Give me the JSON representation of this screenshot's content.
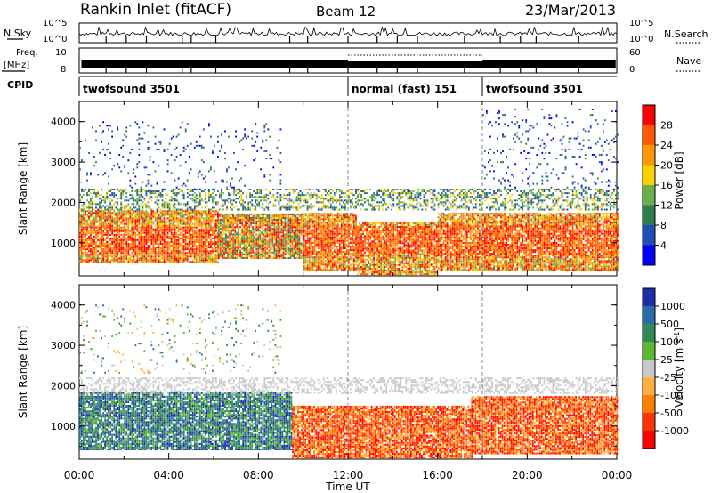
{
  "header": {
    "title": "Rankin Inlet (fitACF)",
    "beam": "Beam 12",
    "date": "23/Mar/2013"
  },
  "status_panels": {
    "nsky_label": "N.Sky",
    "nsearch_label": "N.Search",
    "nsky_ticks": [
      "10^5",
      "10^0"
    ],
    "freq_label_1": "Freq.",
    "freq_label_2": "[MHz]",
    "freq_ticks": [
      "10",
      "8"
    ],
    "nave_ticks": [
      "60",
      "0"
    ],
    "nave_label": "Nave",
    "cpid_label": "CPID",
    "cpid_segments": [
      {
        "start_h": 0,
        "end_h": 12,
        "label": "twofsound 3501"
      },
      {
        "start_h": 12,
        "end_h": 18,
        "label": "normal (fast) 151"
      },
      {
        "start_h": 18,
        "end_h": 24,
        "label": "twofsound 3501"
      }
    ]
  },
  "colors": {
    "power": [
      "#0000ff",
      "#1f4fb4",
      "#2f7c4f",
      "#69b04a",
      "#ffd000",
      "#ff9800",
      "#ff5a00",
      "#ff0000"
    ],
    "velocity": [
      "#ff0000",
      "#ff3300",
      "#ff7f00",
      "#ffb040",
      "#c8c8c8",
      "#5bb82f",
      "#2f8a56",
      "#2a6aa8",
      "#1a2fa8"
    ]
  },
  "chart_data": [
    {
      "type": "heatmap",
      "name": "power-panel",
      "ylabel": "Slant Range [km]",
      "xlabel": "Time UT",
      "xlim": [
        0,
        24
      ],
      "ylim": [
        180,
        4500
      ],
      "xticks": [
        "00:00",
        "04:00",
        "08:00",
        "12:00",
        "16:00",
        "20:00",
        "00:00"
      ],
      "yticks": [
        1000,
        2000,
        3000,
        4000
      ],
      "colorbar": {
        "label": "Power [dB]",
        "ticks": [
          "28",
          "24",
          "20",
          "16",
          "12",
          "8",
          "4"
        ]
      },
      "bands": [
        {
          "start_h": 0.0,
          "end_h": 6.2,
          "min_km": 500,
          "max_km": 1800,
          "level": "high"
        },
        {
          "start_h": 6.2,
          "end_h": 10.0,
          "min_km": 600,
          "max_km": 1700,
          "level": "mid"
        },
        {
          "start_h": 10.0,
          "end_h": 12.4,
          "min_km": 300,
          "max_km": 1700,
          "level": "high"
        },
        {
          "start_h": 12.4,
          "end_h": 16.0,
          "min_km": 200,
          "max_km": 1500,
          "level": "high"
        },
        {
          "start_h": 16.0,
          "end_h": 24.0,
          "min_km": 300,
          "max_km": 1700,
          "level": "high"
        },
        {
          "start_h": 0.0,
          "end_h": 24.0,
          "min_km": 1800,
          "max_km": 2300,
          "level": "low"
        },
        {
          "start_h": 0.0,
          "end_h": 9.0,
          "min_km": 2300,
          "max_km": 4000,
          "level": "sparse"
        },
        {
          "start_h": 18.0,
          "end_h": 24.0,
          "min_km": 2300,
          "max_km": 4300,
          "level": "sparse"
        }
      ]
    },
    {
      "type": "heatmap",
      "name": "velocity-panel",
      "ylabel": "Slant Range [km]",
      "xlabel": "Time UT",
      "xlim": [
        0,
        24
      ],
      "ylim": [
        180,
        4500
      ],
      "xticks": [
        "00:00",
        "04:00",
        "08:00",
        "12:00",
        "16:00",
        "20:00",
        "00:00"
      ],
      "yticks": [
        1000,
        2000,
        3000,
        4000
      ],
      "colorbar": {
        "label": "Velocity [m s^-1]",
        "ticks": [
          "1000",
          "500",
          "100",
          "25",
          "-25",
          "-100",
          "-500",
          "-1000"
        ]
      },
      "bands": [
        {
          "start_h": 0.0,
          "end_h": 9.5,
          "min_km": 400,
          "max_km": 1800,
          "sign": "positive"
        },
        {
          "start_h": 9.5,
          "end_h": 17.5,
          "min_km": 200,
          "max_km": 1500,
          "sign": "negative"
        },
        {
          "start_h": 17.5,
          "end_h": 24.0,
          "min_km": 300,
          "max_km": 1700,
          "sign": "negative"
        },
        {
          "start_h": 0.0,
          "end_h": 24.0,
          "min_km": 1800,
          "max_km": 2200,
          "sign": "zero"
        },
        {
          "start_h": 0.0,
          "end_h": 9.0,
          "min_km": 2300,
          "max_km": 4000,
          "sign": "sparse"
        }
      ]
    }
  ],
  "axes": {
    "time_label": "Time UT"
  }
}
